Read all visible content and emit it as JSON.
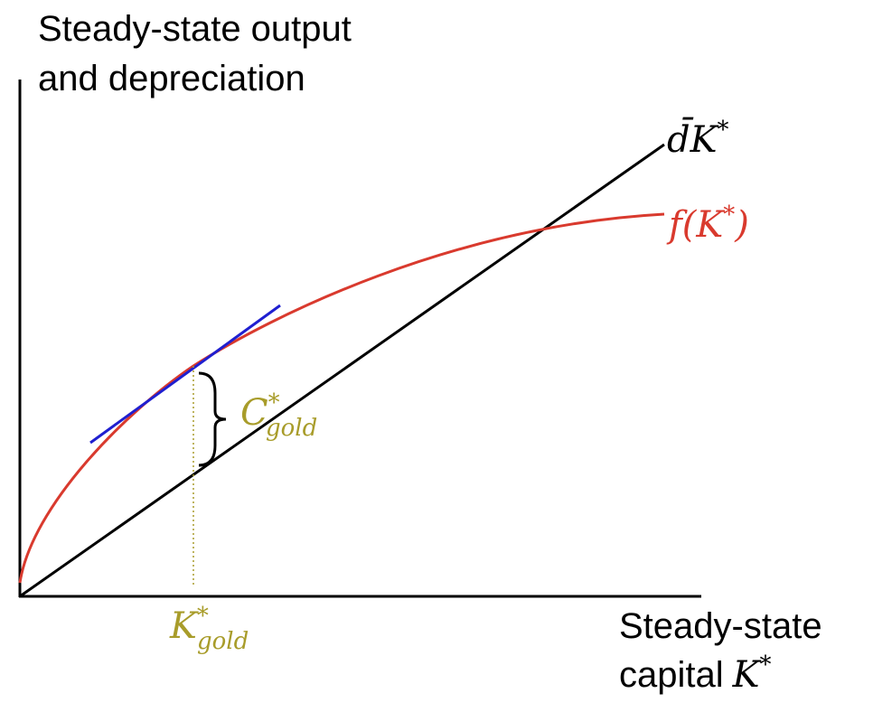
{
  "y_axis_label": [
    "Steady-state output",
    "and depreciation"
  ],
  "x_axis_label": {
    "lines": [
      "Steady-state",
      "capital"
    ],
    "symbol": "K",
    "sup": "*"
  },
  "line_label": {
    "base": "d̄K",
    "sup": "*"
  },
  "curve_label": {
    "before": "f(K",
    "sup": "*",
    "after": ")"
  },
  "gap_label": {
    "base": "C",
    "sup": "*",
    "sub": "gold"
  },
  "gold_label": {
    "base": "K",
    "sup": "*",
    "sub": "gold"
  }
}
